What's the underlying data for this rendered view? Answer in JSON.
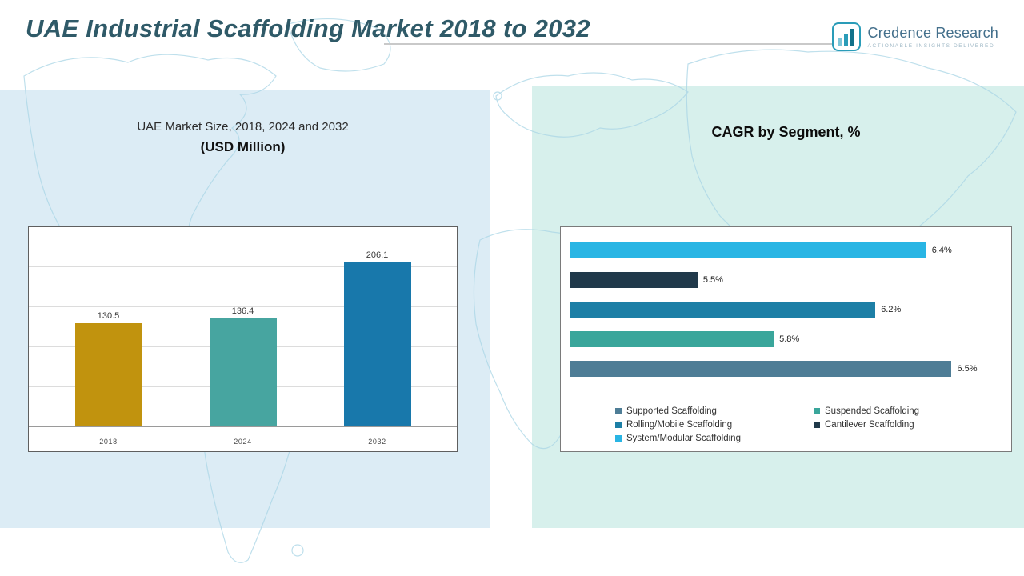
{
  "header": {
    "title": "UAE Industrial Scaffolding Market 2018 to 2032"
  },
  "logo": {
    "brand": "Credence Research",
    "tagline": "Actionable Insights Delivered",
    "icon": "bar-chart-logo",
    "brand_color": "#44708c",
    "icon_color": "#2a9cb8"
  },
  "left_panel": {
    "subtitle": "UAE Market Size, 2018, 2024 and 2032",
    "unit_label": "(USD Million)",
    "background": "#dcecf5"
  },
  "right_panel": {
    "title": "CAGR by Segment, %",
    "background": "#d7f0ec"
  },
  "chart_data": [
    {
      "type": "bar",
      "title": "UAE Market Size, 2018, 2024 and 2032 (USD Million)",
      "categories": [
        "2018",
        "2024",
        "2032"
      ],
      "values": [
        130.5,
        136.4,
        206.1
      ],
      "value_labels": [
        "130.5",
        "136.4",
        "206.1"
      ],
      "bar_colors": [
        "#c1930e",
        "#47a5a0",
        "#1878ab"
      ],
      "xlabel": "",
      "ylabel": "",
      "ylim": [
        0,
        250
      ],
      "gridlines": [
        50,
        100,
        150,
        200
      ],
      "grid": true,
      "legend_position": "none"
    },
    {
      "type": "bar",
      "orientation": "horizontal",
      "title": "CAGR by Segment, %",
      "categories": [
        "System/Modular Scaffolding",
        "Cantilever Scaffolding",
        "Rolling/Mobile Scaffolding",
        "Suspended Scaffolding",
        "Supported Scaffolding"
      ],
      "values": [
        6.4,
        5.5,
        6.2,
        5.8,
        6.5
      ],
      "value_labels": [
        "6.4%",
        "5.5%",
        "6.2%",
        "5.8%",
        "6.5%"
      ],
      "bar_colors": [
        "#29b5e4",
        "#20394a",
        "#1d7fa6",
        "#3aa69b",
        "#4e7d96"
      ],
      "xlabel": "",
      "ylabel": "",
      "xlim": [
        5.0,
        6.6
      ],
      "grid": false,
      "legend_position": "bottom-inside",
      "legend": [
        {
          "label": "Supported Scaffolding",
          "color": "#4e7d96"
        },
        {
          "label": "Suspended Scaffolding",
          "color": "#3aa69b"
        },
        {
          "label": "Rolling/Mobile Scaffolding",
          "color": "#1d7fa6"
        },
        {
          "label": "Cantilever Scaffolding",
          "color": "#20394a"
        },
        {
          "label": "System/Modular Scaffolding",
          "color": "#29b5e4"
        }
      ]
    }
  ]
}
